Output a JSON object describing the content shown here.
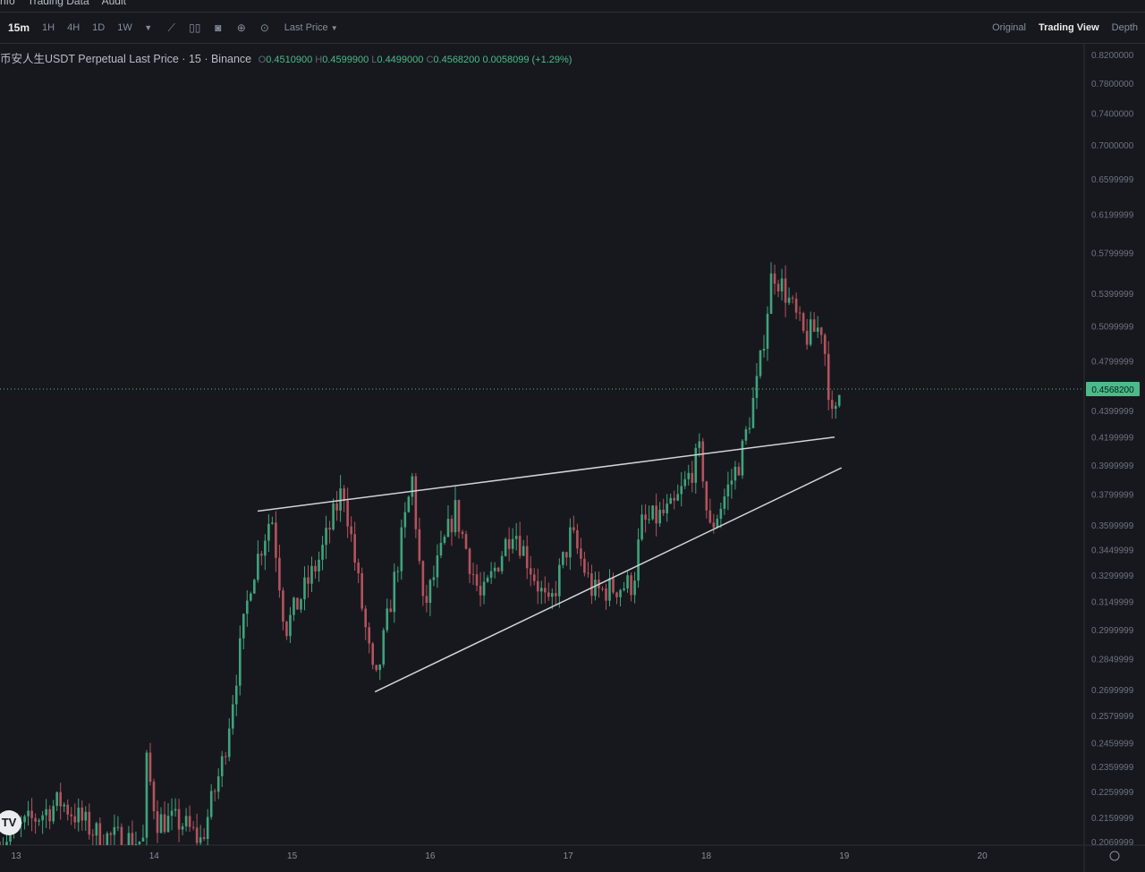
{
  "nav": {
    "items": [
      "nfo",
      "Trading Data",
      "Audit"
    ]
  },
  "toolbar": {
    "timeframes": [
      "15m",
      "1H",
      "4H",
      "1D",
      "1W"
    ],
    "active_timeframe": "15m",
    "icons": [
      "chevron-down-icon",
      "indicator-icon",
      "candle-type-icon",
      "camera-icon",
      "plus-circle-icon",
      "settings-circle-icon"
    ],
    "price_type": "Last Price",
    "views": [
      "Original",
      "Trading View",
      "Depth"
    ],
    "active_view": "Trading View"
  },
  "legend": {
    "symbol": "币安人生USDT Perpetual Last Price · 15 · Binance",
    "o_label": "O",
    "o": "0.4510900",
    "h_label": "H",
    "h": "0.4599900",
    "l_label": "L",
    "l": "0.4499000",
    "c_label": "C",
    "c": "0.4568200",
    "change": "0.0058099 (+1.29%)"
  },
  "colors": {
    "up": "#3fa37c",
    "down": "#b4535e",
    "accent": "#4cba8a",
    "background": "#17181d"
  },
  "chart_data": {
    "type": "candlestick",
    "y_scale": "log",
    "ylim": [
      0.2069999,
      0.82
    ],
    "y_ticks": [
      "0.8200000",
      "0.7800000",
      "0.7400000",
      "0.7000000",
      "0.6599999",
      "0.6199999",
      "0.5799999",
      "0.5399999",
      "0.5099999",
      "0.4799999",
      "0.4399999",
      "0.4199999",
      "0.3999999",
      "0.3799999",
      "0.3599999",
      "0.3449999",
      "0.3299999",
      "0.3149999",
      "0.2999999",
      "0.2849999",
      "0.2699999",
      "0.2579999",
      "0.2459999",
      "0.2359999",
      "0.2259999",
      "0.2159999",
      "0.2069999"
    ],
    "x_ticks": [
      "13",
      "14",
      "15",
      "16",
      "17",
      "18",
      "19",
      "20"
    ],
    "last_price": "0.4568200",
    "price_path": [
      [
        12.88,
        0.207
      ],
      [
        13.32,
        0.222
      ],
      [
        13.6,
        0.209
      ],
      [
        13.92,
        0.207
      ],
      [
        13.94,
        0.239
      ],
      [
        14.02,
        0.215
      ],
      [
        14.2,
        0.214
      ],
      [
        14.34,
        0.207
      ],
      [
        14.5,
        0.239
      ],
      [
        14.7,
        0.327
      ],
      [
        14.85,
        0.368
      ],
      [
        14.95,
        0.3
      ],
      [
        15.2,
        0.34
      ],
      [
        15.37,
        0.385
      ],
      [
        15.6,
        0.27
      ],
      [
        15.87,
        0.39
      ],
      [
        15.95,
        0.31
      ],
      [
        16.18,
        0.37
      ],
      [
        16.37,
        0.315
      ],
      [
        16.6,
        0.36
      ],
      [
        16.86,
        0.31
      ],
      [
        17.02,
        0.355
      ],
      [
        17.18,
        0.32
      ],
      [
        17.47,
        0.325
      ],
      [
        17.53,
        0.36
      ],
      [
        17.76,
        0.37
      ],
      [
        17.96,
        0.41
      ],
      [
        18.02,
        0.355
      ],
      [
        18.25,
        0.405
      ],
      [
        18.38,
        0.467
      ],
      [
        18.48,
        0.564
      ],
      [
        18.58,
        0.539
      ],
      [
        18.71,
        0.5
      ],
      [
        18.84,
        0.51
      ],
      [
        18.92,
        0.425
      ],
      [
        18.97,
        0.4568
      ]
    ],
    "trendlines": [
      {
        "from": [
          14.75,
          0.369
        ],
        "to": [
          18.93,
          0.42
        ]
      },
      {
        "from": [
          15.6,
          0.269
        ],
        "to": [
          18.98,
          0.398
        ]
      }
    ]
  }
}
